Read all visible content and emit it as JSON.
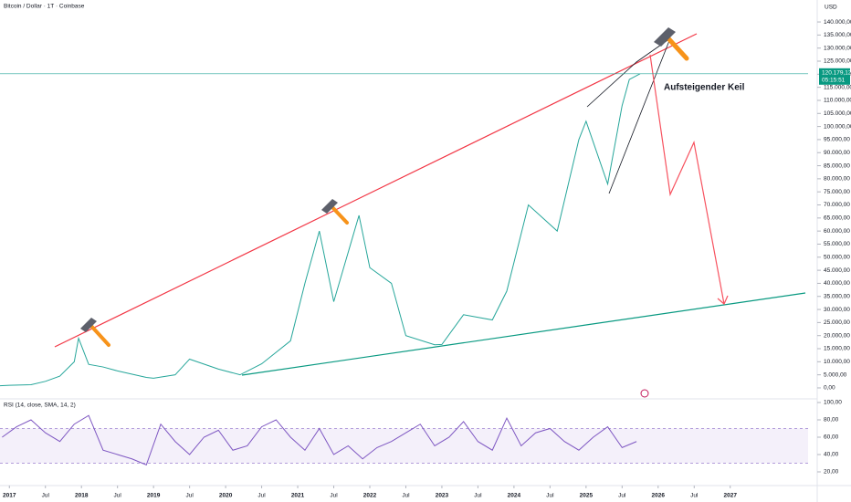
{
  "chart_data": [
    {
      "type": "line",
      "title": "Bitcoin / Dollar · 1T · Coinbase",
      "y_axis_label": "USD",
      "annotation": "Aufsteigender Keil",
      "countdown": "05:15:51",
      "color": "#26a69a",
      "x": [
        2016.87,
        2017.0,
        2017.3,
        2017.5,
        2017.7,
        2017.9,
        2017.96,
        2018.1,
        2018.3,
        2018.5,
        2018.9,
        2019.0,
        2019.3,
        2019.5,
        2019.9,
        2020.2,
        2020.5,
        2020.9,
        2021.1,
        2021.3,
        2021.5,
        2021.85,
        2022.0,
        2022.3,
        2022.5,
        2022.9,
        2023.0,
        2023.3,
        2023.7,
        2023.9,
        2024.2,
        2024.6,
        2024.9,
        2025.0,
        2025.3,
        2025.5,
        2025.6,
        2025.75
      ],
      "values": [
        800,
        1000,
        1200,
        2500,
        4500,
        10000,
        19000,
        9000,
        8000,
        6500,
        4000,
        3700,
        5000,
        11000,
        7200,
        5000,
        9200,
        18000,
        40000,
        60000,
        33000,
        66000,
        46000,
        40000,
        20000,
        16500,
        16600,
        28000,
        26000,
        37000,
        70000,
        60000,
        95000,
        102000,
        78000,
        108000,
        118000,
        120179.12
      ],
      "last_value": 120179.12,
      "last_value_label": "120.179,12",
      "xlim": [
        2016.87,
        2028.08
      ],
      "ylim": [
        -4200,
        148400
      ],
      "yticks": [
        {
          "value": 0,
          "label": "0,00"
        },
        {
          "value": 5000,
          "label": "5.000,00"
        },
        {
          "value": 10000,
          "label": "10.000,00"
        },
        {
          "value": 15000,
          "label": "15.000,00"
        },
        {
          "value": 20000,
          "label": "20.000,00"
        },
        {
          "value": 25000,
          "label": "25.000,00"
        },
        {
          "value": 30000,
          "label": "30.000,00"
        },
        {
          "value": 35000,
          "label": "35.000,00"
        },
        {
          "value": 40000,
          "label": "40.000,00"
        },
        {
          "value": 45000,
          "label": "45.000,00"
        },
        {
          "value": 50000,
          "label": "50.000,00"
        },
        {
          "value": 55000,
          "label": "55.000,00"
        },
        {
          "value": 60000,
          "label": "60.000,00"
        },
        {
          "value": 65000,
          "label": "65.000,00"
        },
        {
          "value": 70000,
          "label": "70.000,00"
        },
        {
          "value": 75000,
          "label": "75.000,00"
        },
        {
          "value": 80000,
          "label": "80.000,00"
        },
        {
          "value": 85000,
          "label": "85.000,00"
        },
        {
          "value": 90000,
          "label": "90.000,00"
        },
        {
          "value": 95000,
          "label": "95.000,00"
        },
        {
          "value": 100000,
          "label": "100.000,00"
        },
        {
          "value": 105000,
          "label": "105.000,00"
        },
        {
          "value": 110000,
          "label": "110.000,00"
        },
        {
          "value": 115000,
          "label": "115.000,00"
        },
        {
          "value": 120000,
          "label": "120.000,00"
        },
        {
          "value": 125000,
          "label": "125.000,00"
        },
        {
          "value": 130000,
          "label": "130.000,00"
        },
        {
          "value": 135000,
          "label": "135.000,00"
        },
        {
          "value": 140000,
          "label": "140.000,00"
        }
      ]
    },
    {
      "type": "line",
      "title": "RSI (14, close, SMA, 14, 2)",
      "color": "#7e57c2",
      "band": [
        30,
        70
      ],
      "band_color": "#b39ddb",
      "x": [
        2016.9,
        2017.1,
        2017.3,
        2017.5,
        2017.7,
        2017.9,
        2018.1,
        2018.3,
        2018.5,
        2018.7,
        2018.9,
        2019.1,
        2019.3,
        2019.5,
        2019.7,
        2019.9,
        2020.1,
        2020.3,
        2020.5,
        2020.7,
        2020.9,
        2021.1,
        2021.3,
        2021.5,
        2021.7,
        2021.9,
        2022.1,
        2022.3,
        2022.5,
        2022.7,
        2022.9,
        2023.1,
        2023.3,
        2023.5,
        2023.7,
        2023.9,
        2024.1,
        2024.3,
        2024.5,
        2024.7,
        2024.9,
        2025.1,
        2025.3,
        2025.5,
        2025.7
      ],
      "values": [
        60,
        72,
        80,
        65,
        55,
        75,
        85,
        45,
        40,
        35,
        28,
        75,
        55,
        40,
        60,
        68,
        45,
        50,
        72,
        80,
        60,
        45,
        70,
        40,
        50,
        35,
        48,
        55,
        65,
        75,
        50,
        60,
        78,
        55,
        45,
        82,
        50,
        65,
        70,
        55,
        45,
        60,
        72,
        48,
        55
      ],
      "xlim": [
        2016.87,
        2028.08
      ],
      "ylim": [
        6.3,
        104.2
      ],
      "yticks": [
        {
          "value": 100,
          "label": "100,00"
        },
        {
          "value": 80,
          "label": "80,00"
        },
        {
          "value": 60,
          "label": "60,00"
        },
        {
          "value": 40,
          "label": "40,00"
        },
        {
          "value": 20,
          "label": "20,00"
        }
      ],
      "xticks": [
        2017,
        {
          "value": 2017.5,
          "label": "Jul"
        },
        2018,
        {
          "value": 2018.5,
          "label": "Jul"
        },
        2019,
        {
          "value": 2019.5,
          "label": "Jul"
        },
        2020,
        {
          "value": 2020.5,
          "label": "Jul"
        },
        2021,
        {
          "value": 2021.5,
          "label": "Jul"
        },
        2022,
        {
          "value": 2022.5,
          "label": "Jul"
        },
        2023,
        {
          "value": 2023.5,
          "label": "Jul"
        },
        2024,
        {
          "value": 2024.5,
          "label": "Jul"
        },
        2025,
        {
          "value": 2025.5,
          "label": "Jul"
        },
        2026,
        {
          "value": 2026.5,
          "label": "Jul"
        },
        2027
      ]
    }
  ]
}
